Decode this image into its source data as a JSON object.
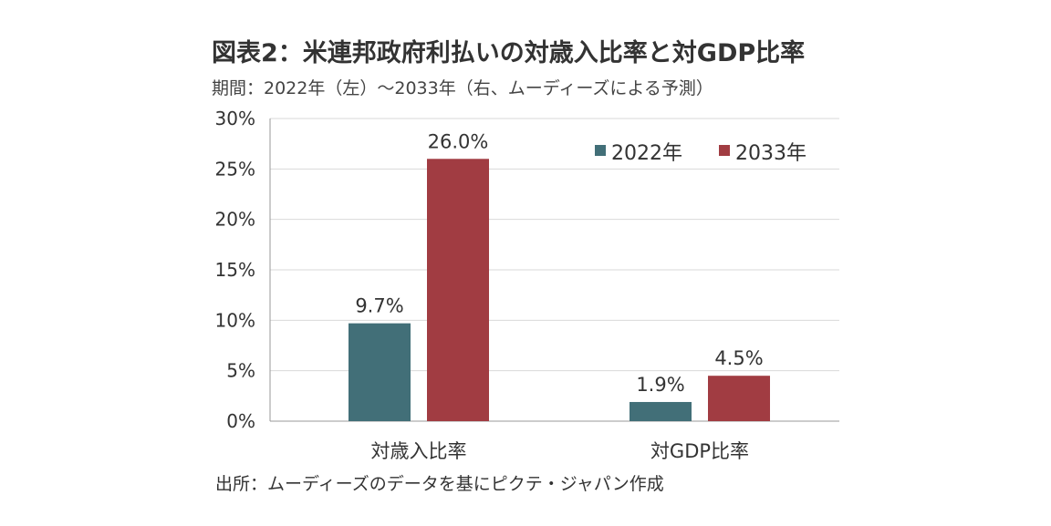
{
  "header": {
    "title": "図表2：米連邦政府利払いの対歳入比率と対GDP比率",
    "subtitle": "期間：2022年（左）～2033年（右、ムーディーズによる予測）"
  },
  "footer": {
    "source": "出所：ムーディーズのデータを基にピクテ・ジャパン作成"
  },
  "chart_data": {
    "type": "bar",
    "categories": [
      "対歳入比率",
      "対GDP比率"
    ],
    "series": [
      {
        "name": "2022年",
        "values": [
          9.7,
          1.9
        ],
        "labels": [
          "9.7%",
          "1.9%"
        ],
        "color": "#426f78"
      },
      {
        "name": "2033年",
        "values": [
          26.0,
          4.5
        ],
        "labels": [
          "26.0%",
          "4.5%"
        ],
        "color": "#a13c42"
      }
    ],
    "yticks": [
      "0%",
      "5%",
      "10%",
      "15%",
      "20%",
      "25%",
      "30%"
    ],
    "ylim": [
      0,
      30
    ],
    "grid": true,
    "legend_position": "top-right",
    "xlabel": "",
    "ylabel": ""
  }
}
